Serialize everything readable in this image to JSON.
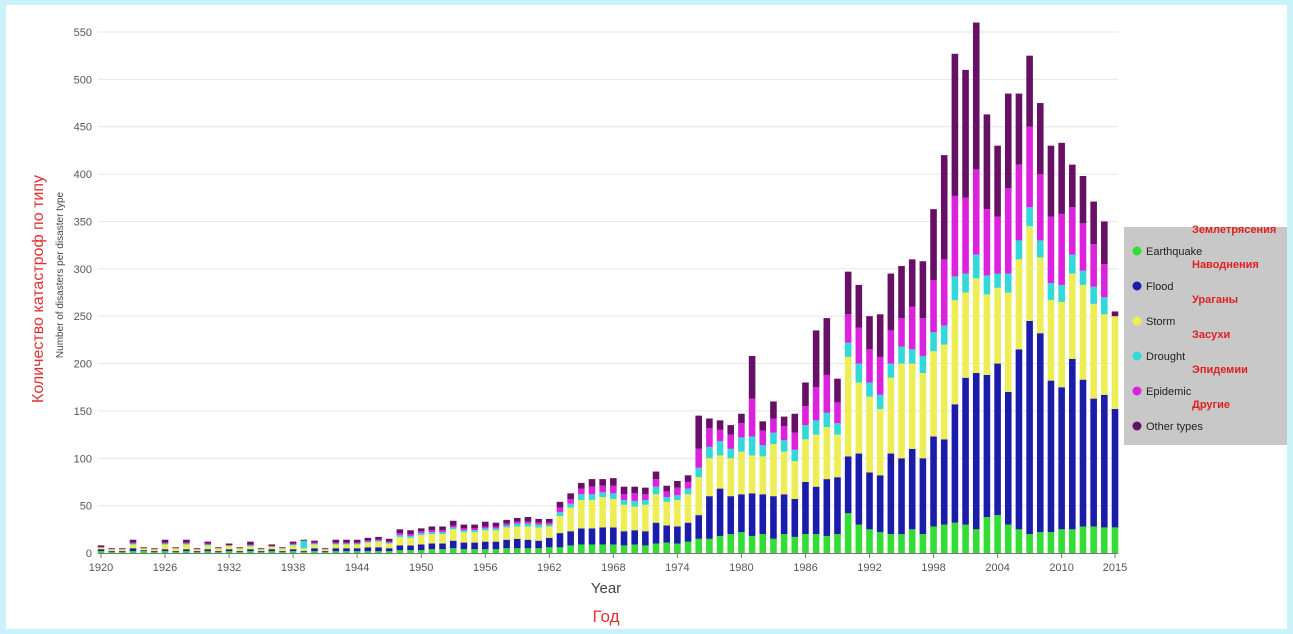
{
  "chart_data": {
    "type": "bar",
    "stacked": true,
    "xlabel": "Year",
    "xlabel_ru": "Год",
    "ylabel": "Number of disasters per disaster type",
    "ylabel_ru": "Количество катастроф по типу",
    "ylim": [
      0,
      550
    ],
    "yticks": [
      0,
      50,
      100,
      150,
      200,
      250,
      300,
      350,
      400,
      450,
      500,
      550
    ],
    "xticks": [
      "1920",
      "1926",
      "1932",
      "1938",
      "1944",
      "1950",
      "1956",
      "1962",
      "1968",
      "1974",
      "1980",
      "1986",
      "1992",
      "1998",
      "2004",
      "2010",
      "2015"
    ],
    "grid": "horizontal",
    "legend_position": "right",
    "categories": [
      "1920",
      "1921",
      "1922",
      "1923",
      "1924",
      "1925",
      "1926",
      "1927",
      "1928",
      "1929",
      "1930",
      "1931",
      "1932",
      "1933",
      "1934",
      "1935",
      "1936",
      "1937",
      "1938",
      "1939",
      "1940",
      "1941",
      "1942",
      "1943",
      "1944",
      "1945",
      "1946",
      "1947",
      "1948",
      "1949",
      "1950",
      "1951",
      "1952",
      "1953",
      "1954",
      "1955",
      "1956",
      "1957",
      "1958",
      "1959",
      "1960",
      "1961",
      "1962",
      "1963",
      "1964",
      "1965",
      "1966",
      "1967",
      "1968",
      "1969",
      "1970",
      "1971",
      "1972",
      "1973",
      "1974",
      "1975",
      "1976",
      "1977",
      "1978",
      "1979",
      "1980",
      "1981",
      "1982",
      "1983",
      "1984",
      "1985",
      "1986",
      "1987",
      "1988",
      "1989",
      "1990",
      "1991",
      "1992",
      "1993",
      "1994",
      "1995",
      "1996",
      "1997",
      "1998",
      "1999",
      "2000",
      "2001",
      "2002",
      "2003",
      "2004",
      "2005",
      "2006",
      "2007",
      "2008",
      "2009",
      "2010",
      "2011",
      "2012",
      "2013",
      "2014",
      "2015"
    ],
    "series": [
      {
        "name": "Earthquake",
        "label_ru": "Землетрясения",
        "color": "#33dd33",
        "values": [
          2,
          1,
          1,
          2,
          2,
          1,
          2,
          1,
          2,
          1,
          2,
          1,
          2,
          1,
          2,
          1,
          2,
          1,
          2,
          1,
          2,
          1,
          2,
          2,
          2,
          2,
          2,
          2,
          3,
          3,
          3,
          4,
          4,
          5,
          4,
          4,
          4,
          4,
          5,
          5,
          5,
          5,
          6,
          6,
          8,
          9,
          9,
          9,
          9,
          8,
          9,
          8,
          10,
          11,
          10,
          12,
          15,
          15,
          18,
          20,
          22,
          18,
          20,
          15,
          20,
          17,
          20,
          20,
          18,
          20,
          42,
          30,
          25,
          22,
          20,
          20,
          25,
          20,
          28,
          30,
          32,
          30,
          25,
          38,
          40,
          30,
          25,
          20,
          22,
          22,
          25,
          25,
          28,
          28,
          27,
          27
        ]
      },
      {
        "name": "Flood",
        "label_ru": "Наводнения",
        "color": "#1c1caa",
        "values": [
          2,
          1,
          1,
          3,
          1,
          1,
          2,
          1,
          2,
          1,
          2,
          1,
          2,
          1,
          2,
          1,
          2,
          1,
          2,
          1,
          3,
          1,
          3,
          3,
          3,
          4,
          4,
          3,
          5,
          5,
          6,
          6,
          6,
          8,
          7,
          7,
          8,
          8,
          9,
          10,
          9,
          8,
          10,
          15,
          15,
          17,
          17,
          18,
          18,
          15,
          15,
          15,
          22,
          18,
          18,
          20,
          25,
          45,
          50,
          40,
          40,
          45,
          42,
          45,
          42,
          40,
          55,
          50,
          60,
          60,
          60,
          75,
          60,
          60,
          85,
          80,
          85,
          80,
          95,
          90,
          125,
          155,
          165,
          150,
          160,
          140,
          190,
          225,
          210,
          160,
          150,
          180,
          155,
          135,
          140,
          125
        ]
      },
      {
        "name": "Storm",
        "label_ru": "Ураганы",
        "color": "#eded55",
        "values": [
          2,
          2,
          2,
          4,
          2,
          2,
          5,
          3,
          5,
          2,
          4,
          3,
          4,
          3,
          3,
          2,
          3,
          3,
          4,
          3,
          4,
          2,
          4,
          4,
          4,
          5,
          6,
          5,
          9,
          8,
          10,
          10,
          10,
          12,
          11,
          11,
          12,
          12,
          13,
          13,
          14,
          14,
          12,
          18,
          25,
          30,
          30,
          32,
          30,
          28,
          25,
          28,
          30,
          25,
          28,
          30,
          40,
          40,
          35,
          40,
          45,
          40,
          40,
          55,
          45,
          40,
          45,
          55,
          55,
          45,
          105,
          75,
          80,
          70,
          80,
          100,
          90,
          90,
          90,
          100,
          110,
          90,
          100,
          85,
          80,
          105,
          95,
          100,
          80,
          85,
          90,
          90,
          100,
          100,
          85,
          98
        ]
      },
      {
        "name": "Drought",
        "label_ru": "Засухи",
        "color": "#33d8d8",
        "values": [
          0,
          0,
          0,
          1,
          0,
          0,
          1,
          0,
          1,
          0,
          1,
          0,
          0,
          0,
          1,
          0,
          0,
          0,
          1,
          8,
          1,
          0,
          1,
          1,
          1,
          1,
          1,
          1,
          2,
          2,
          2,
          2,
          2,
          2,
          2,
          2,
          2,
          2,
          2,
          3,
          3,
          3,
          2,
          4,
          4,
          6,
          6,
          5,
          6,
          5,
          6,
          5,
          8,
          5,
          5,
          6,
          10,
          12,
          15,
          10,
          15,
          20,
          12,
          12,
          12,
          12,
          15,
          15,
          15,
          12,
          15,
          20,
          15,
          15,
          15,
          18,
          15,
          18,
          20,
          20,
          25,
          20,
          25,
          20,
          15,
          20,
          20,
          20,
          18,
          18,
          18,
          20,
          15,
          18,
          18,
          0
        ]
      },
      {
        "name": "Epidemic",
        "label_ru": "Эпидемии",
        "color": "#dd22dd",
        "values": [
          0,
          0,
          0,
          1,
          0,
          0,
          1,
          0,
          1,
          0,
          1,
          0,
          0,
          0,
          1,
          0,
          0,
          0,
          1,
          0,
          1,
          0,
          1,
          1,
          1,
          1,
          1,
          1,
          2,
          2,
          2,
          2,
          2,
          2,
          2,
          2,
          2,
          2,
          2,
          2,
          2,
          2,
          2,
          5,
          5,
          6,
          8,
          7,
          8,
          6,
          8,
          6,
          8,
          6,
          8,
          7,
          20,
          20,
          12,
          15,
          15,
          40,
          15,
          15,
          15,
          18,
          20,
          35,
          40,
          22,
          30,
          38,
          35,
          40,
          35,
          30,
          45,
          40,
          55,
          70,
          85,
          80,
          90,
          70,
          60,
          90,
          80,
          85,
          70,
          70,
          75,
          50,
          50,
          45,
          35,
          0
        ]
      },
      {
        "name": "Other types",
        "label_ru": "Другие",
        "color": "#661066",
        "values": [
          2,
          1,
          1,
          3,
          1,
          1,
          3,
          1,
          3,
          1,
          2,
          1,
          2,
          1,
          3,
          1,
          2,
          1,
          2,
          1,
          2,
          1,
          3,
          3,
          3,
          3,
          3,
          3,
          4,
          4,
          3,
          4,
          4,
          5,
          4,
          4,
          5,
          4,
          4,
          4,
          5,
          4,
          4,
          6,
          6,
          6,
          8,
          7,
          8,
          8,
          7,
          7,
          8,
          6,
          7,
          7,
          35,
          10,
          10,
          10,
          10,
          45,
          10,
          18,
          10,
          20,
          25,
          60,
          60,
          25,
          45,
          45,
          35,
          45,
          60,
          55,
          50,
          60,
          75,
          110,
          150,
          135,
          155,
          100,
          75,
          100,
          75,
          75,
          75,
          75,
          75,
          45,
          50,
          45,
          45,
          5
        ]
      }
    ]
  }
}
